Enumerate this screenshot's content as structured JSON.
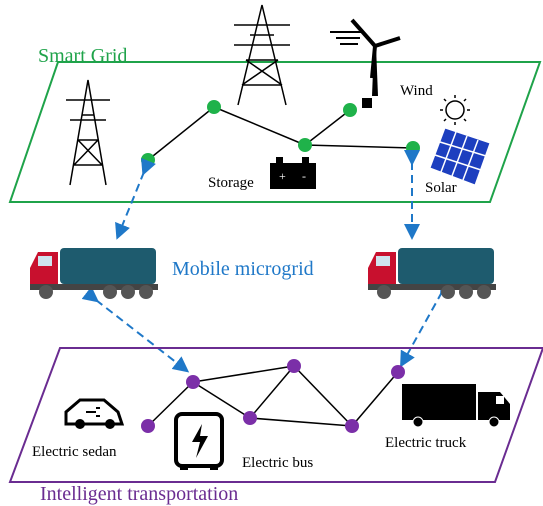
{
  "smart_grid": {
    "title": "Smart Grid",
    "labels": {
      "wind": "Wind",
      "storage": "Storage",
      "solar": "Solar"
    }
  },
  "mobile_microgrid": {
    "title": "Mobile microgrid"
  },
  "transportation": {
    "title": "Intelligent transportation",
    "labels": {
      "sedan": "Electric sedan",
      "bus": "Electric bus",
      "truck": "Electric truck"
    }
  }
}
